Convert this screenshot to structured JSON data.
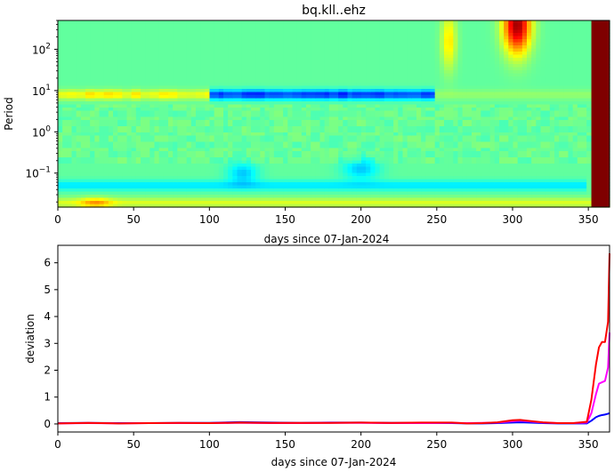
{
  "chart_data": [
    {
      "type": "heatmap",
      "title": "bq.kll..ehz",
      "xlabel": "days since 07-Jan-2024",
      "ylabel": "Period",
      "xlim": [
        0,
        364
      ],
      "ylim": [
        0.015,
        500
      ],
      "yscale": "log",
      "xticks": [
        "0",
        "50",
        "100",
        "150",
        "200",
        "250",
        "300",
        "350"
      ],
      "yticks": [
        {
          "value": 100,
          "base": "10",
          "exp": "2"
        },
        {
          "value": 10,
          "base": "10",
          "exp": "1"
        },
        {
          "value": 1,
          "base": "10",
          "exp": "0"
        },
        {
          "value": 0.1,
          "base": "10",
          "exp": "−1"
        }
      ],
      "colormap": "jet",
      "features": [
        {
          "kind": "band",
          "period": 7,
          "x_range": [
            100,
            250
          ],
          "value": 0.18,
          "note": "blue band near period 7"
        },
        {
          "kind": "band",
          "period": 0.05,
          "x_range": [
            0,
            350
          ],
          "value": 0.4,
          "note": "cyan band"
        },
        {
          "kind": "blob",
          "x_range": [
            295,
            315
          ],
          "period_range": [
            40,
            500
          ],
          "value": 0.95,
          "note": "red hot spot"
        },
        {
          "kind": "column",
          "x_range": [
            352,
            364
          ],
          "value": 1.0,
          "note": "dark red final column"
        }
      ]
    },
    {
      "type": "line",
      "xlabel": "days since 07-Jan-2024",
      "ylabel": "deviation",
      "xlim": [
        0,
        364
      ],
      "ylim": [
        -0.3,
        6.65
      ],
      "xticks": [
        "0",
        "50",
        "100",
        "150",
        "200",
        "250",
        "300",
        "350"
      ],
      "yticks": [
        "0",
        "1",
        "2",
        "3",
        "4",
        "5",
        "6"
      ],
      "x": [
        0,
        20,
        40,
        60,
        80,
        100,
        120,
        140,
        160,
        180,
        200,
        220,
        240,
        260,
        270,
        280,
        290,
        300,
        305,
        310,
        320,
        330,
        340,
        349,
        352,
        355,
        357,
        359,
        361,
        363,
        364
      ],
      "series": [
        {
          "color": "#0000ff",
          "values": [
            0.03,
            0.04,
            0.03,
            0.03,
            0.04,
            0.04,
            0.07,
            0.05,
            0.04,
            0.05,
            0.05,
            0.04,
            0.04,
            0.03,
            0.02,
            0.02,
            0.03,
            0.05,
            0.06,
            0.05,
            0.03,
            0.02,
            0.02,
            0.02,
            0.12,
            0.25,
            0.3,
            0.33,
            0.35,
            0.38,
            0.4
          ]
        },
        {
          "color": "#ff00ff",
          "values": [
            0.02,
            0.03,
            0.02,
            0.03,
            0.03,
            0.03,
            0.04,
            0.03,
            0.03,
            0.04,
            0.04,
            0.03,
            0.03,
            0.04,
            0.03,
            0.04,
            0.05,
            0.1,
            0.12,
            0.1,
            0.05,
            0.03,
            0.03,
            0.05,
            0.4,
            1.1,
            1.5,
            1.55,
            1.6,
            2.1,
            3.4
          ]
        },
        {
          "color": "#ff0000",
          "values": [
            0.02,
            0.04,
            0.02,
            0.03,
            0.04,
            0.03,
            0.05,
            0.04,
            0.04,
            0.04,
            0.05,
            0.04,
            0.05,
            0.05,
            0.02,
            0.03,
            0.06,
            0.14,
            0.15,
            0.12,
            0.06,
            0.03,
            0.03,
            0.08,
            0.9,
            2.2,
            2.85,
            3.05,
            3.05,
            3.8,
            6.35
          ]
        }
      ]
    }
  ]
}
